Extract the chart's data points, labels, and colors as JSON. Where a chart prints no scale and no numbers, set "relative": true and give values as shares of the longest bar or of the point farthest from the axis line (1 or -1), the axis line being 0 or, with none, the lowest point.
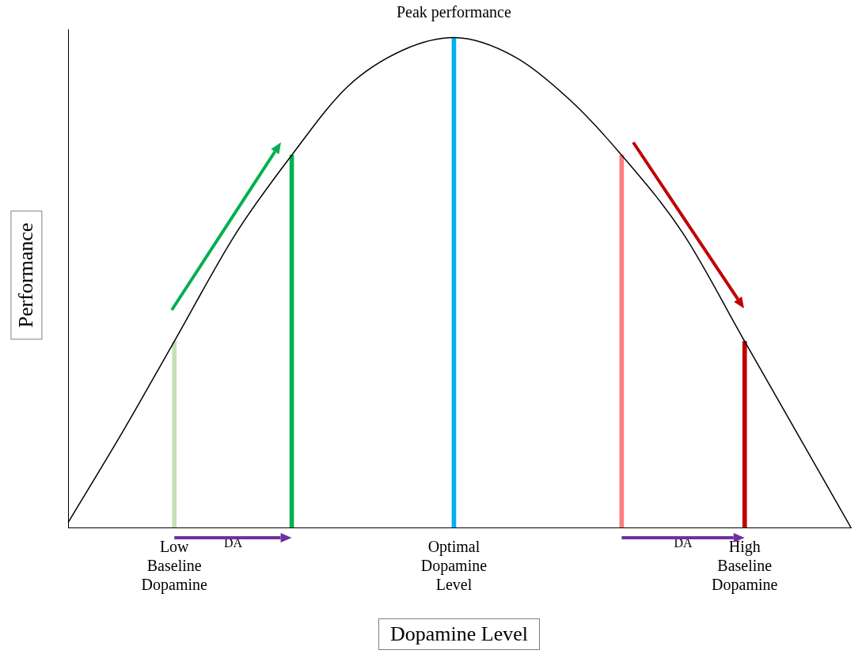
{
  "chart_data": {
    "type": "line",
    "relative": true,
    "xlabel": "Dopamine Level",
    "ylabel": "Performance",
    "categories": [
      null,
      null,
      null,
      null,
      null,
      null,
      null,
      null,
      null,
      null,
      null,
      null,
      null,
      null,
      null,
      null,
      null,
      null,
      null,
      "Low Baseline Dopamine",
      null,
      null,
      null,
      null,
      null,
      null,
      null,
      null,
      null,
      null,
      null,
      null,
      null,
      null,
      null,
      null,
      null,
      null,
      null,
      null,
      null,
      null,
      null,
      null,
      null,
      null,
      null,
      null,
      null,
      null,
      null,
      null,
      null,
      null,
      null,
      null,
      null,
      null,
      null,
      null,
      null,
      null,
      null,
      null,
      null,
      null,
      null,
      null,
      null,
      "Optimal Dopamine Level",
      null,
      null,
      null,
      null,
      null,
      null,
      null,
      null,
      null,
      null,
      null,
      null,
      null,
      null,
      null,
      null,
      null,
      null,
      null,
      null,
      null,
      null,
      null,
      null,
      null,
      null,
      null,
      null,
      null,
      null,
      null,
      null,
      null,
      null,
      null,
      null,
      null,
      null,
      null,
      null,
      null,
      null,
      null,
      null,
      null,
      null,
      null,
      null,
      null,
      null,
      null,
      "High Baseline Dopamine",
      null,
      null,
      null,
      null,
      null,
      null,
      null,
      null,
      null,
      null,
      null,
      null,
      null,
      null,
      null,
      null,
      null,
      null,
      null
    ],
    "series": [
      {
        "color": "#000000",
        "values": [
          0.01,
          null,
          null,
          null,
          null,
          null,
          null,
          null,
          null,
          null,
          0.2,
          null,
          null,
          null,
          null,
          null,
          null,
          null,
          null,
          0.38,
          null,
          null,
          null,
          null,
          null,
          null,
          null,
          null,
          null,
          null,
          0.6,
          null,
          null,
          null,
          null,
          null,
          null,
          null,
          null,
          null,
          0.76,
          null,
          null,
          null,
          null,
          null,
          null,
          null,
          null,
          null,
          0.9,
          null,
          null,
          null,
          null,
          null,
          null,
          null,
          null,
          null,
          0.975,
          null,
          null,
          null,
          null,
          null,
          null,
          null,
          null,
          1,
          null,
          null,
          null,
          null,
          null,
          null,
          null,
          null,
          null,
          null,
          0.96,
          null,
          null,
          null,
          null,
          null,
          null,
          null,
          null,
          null,
          0.87,
          null,
          null,
          null,
          null,
          null,
          null,
          null,
          null,
          0.76,
          null,
          null,
          null,
          null,
          null,
          null,
          null,
          null,
          null,
          null,
          0.6,
          null,
          null,
          null,
          null,
          null,
          null,
          null,
          null,
          null,
          null,
          0.38,
          null,
          null,
          null,
          null,
          null,
          null,
          null,
          null,
          0.2,
          null,
          null,
          null,
          null,
          null,
          null,
          null,
          null,
          null,
          0
        ]
      },
      {
        "type": "bar",
        "values": [
          null,
          null,
          null,
          null,
          null,
          null,
          null,
          null,
          null,
          null,
          null,
          null,
          null,
          null,
          null,
          null,
          null,
          null,
          null,
          0.38,
          null,
          null,
          null,
          null,
          null,
          null,
          null,
          null,
          null,
          null,
          null,
          null,
          null,
          null,
          null,
          null,
          null,
          null,
          null,
          null,
          0.76,
          null,
          null,
          null,
          null,
          null,
          null,
          null,
          null,
          null,
          null,
          null,
          null,
          null,
          null,
          null,
          null,
          null,
          null,
          null,
          null,
          null,
          null,
          null,
          null,
          null,
          null,
          null,
          null,
          1,
          null,
          null,
          null,
          null,
          null,
          null,
          null,
          null,
          null,
          null,
          null,
          null,
          null,
          null,
          null,
          null,
          null,
          null,
          null,
          null,
          null,
          null,
          null,
          null,
          null,
          null,
          null,
          null,
          null,
          0.76,
          null,
          null,
          null,
          null,
          null,
          null,
          null,
          null,
          null,
          null,
          null,
          null,
          null,
          null,
          null,
          null,
          null,
          null,
          null,
          null,
          null,
          0.38,
          null,
          null,
          null,
          null,
          null,
          null,
          null,
          null,
          null,
          null,
          null,
          null,
          null,
          null,
          null,
          null,
          null,
          null,
          null
        ],
        "colors": [
          null,
          null,
          null,
          null,
          null,
          null,
          null,
          null,
          null,
          null,
          null,
          null,
          null,
          null,
          null,
          null,
          null,
          null,
          null,
          "#c5e0b4",
          null,
          null,
          null,
          null,
          null,
          null,
          null,
          null,
          null,
          null,
          null,
          null,
          null,
          null,
          null,
          null,
          null,
          null,
          null,
          null,
          "#00b050",
          null,
          null,
          null,
          null,
          null,
          null,
          null,
          null,
          null,
          null,
          null,
          null,
          null,
          null,
          null,
          null,
          null,
          null,
          null,
          null,
          null,
          null,
          null,
          null,
          null,
          null,
          null,
          null,
          "#00b0f0",
          null,
          null,
          null,
          null,
          null,
          null,
          null,
          null,
          null,
          null,
          null,
          null,
          null,
          null,
          null,
          null,
          null,
          null,
          null,
          null,
          null,
          null,
          null,
          null,
          null,
          null,
          null,
          null,
          null,
          "#ff7c80",
          null,
          null,
          null,
          null,
          null,
          null,
          null,
          null,
          null,
          null,
          null,
          null,
          null,
          null,
          null,
          null,
          null,
          null,
          null,
          null,
          null,
          "#c00000",
          null,
          null,
          null,
          null,
          null,
          null,
          null,
          null,
          null,
          null,
          null,
          null,
          null,
          null,
          null,
          null,
          null,
          null,
          null
        ]
      }
    ],
    "annotations": [
      "Peak performance",
      "DA",
      "DA"
    ],
    "legend": false,
    "grid": false,
    "marker": "none",
    "tick_labels": "x"
  }
}
